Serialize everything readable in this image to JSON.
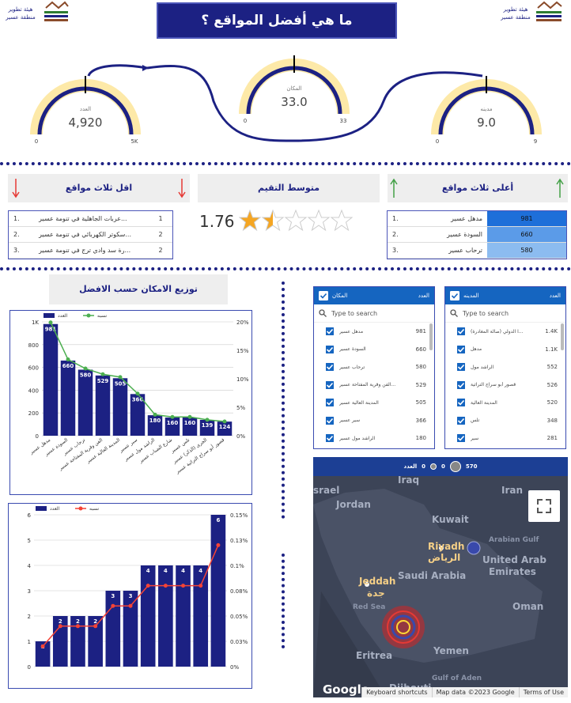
{
  "header": {
    "title": "ما هي أفضل المواقع ؟",
    "logo_lines": [
      "هيئة تطوير",
      "منطقة عسير"
    ]
  },
  "gauges": [
    {
      "label": "العدد",
      "value": "4,920",
      "min": "0",
      "max": "5K"
    },
    {
      "label": "المكان",
      "value": "33.0",
      "min": "0",
      "max": "33"
    },
    {
      "label": "مدينه",
      "value": "9.0",
      "min": "0",
      "max": "9"
    }
  ],
  "lowest": {
    "title": "اقل ثلاث  مواقع",
    "rows": [
      [
        "1.",
        "...عربات الجاهلية في تنومة عسير",
        "1"
      ],
      [
        "2.",
        "...سكوتر الكهربائي في تنومة عسير",
        "2"
      ],
      [
        "3.",
        "...رة سد وادي ترج في تنومة عسير",
        "2"
      ]
    ]
  },
  "rating": {
    "title": "متوسط التقيم",
    "value": "1.76"
  },
  "highest": {
    "title": "أعلى ثلاث مواقع",
    "rows": [
      [
        "1.",
        "مدهل عسير",
        "981"
      ],
      [
        "2.",
        "السودة عسير",
        "660"
      ],
      [
        "3.",
        "ترحاب عسير",
        "580"
      ]
    ]
  },
  "chart_data": [
    {
      "type": "combo",
      "title": "توزيع الامكان حسب الافضل",
      "categories": [
        "مدهل عسير",
        "السودة عسير",
        "ترحاب عسير",
        "الفن وقرية المفتاحة عسير",
        "المدينة العالية عسير",
        "سير عسير",
        "الراشد مول عسير",
        "شارع الضباب عسير",
        "تلس عسير",
        "الجرى (الذكر) عسير",
        "قصور أبو سراج التراثية عسير"
      ],
      "series": [
        {
          "name": "العدد",
          "color": "#1c2183",
          "values": [
            981,
            660,
            580,
            529,
            505,
            366,
            180,
            160,
            160,
            139,
            124
          ]
        },
        {
          "name": "نسبه",
          "color": "#4caf50",
          "axis": "y2",
          "values": [
            19.9,
            13.4,
            11.8,
            10.8,
            10.3,
            7.4,
            3.7,
            3.3,
            3.3,
            2.8,
            2.5
          ]
        }
      ],
      "ylim": [
        0,
        1000
      ],
      "yticks": [
        0,
        200,
        400,
        600,
        800,
        {
          "value": 1000,
          "label": "1K"
        }
      ],
      "y2lim": [
        0,
        20
      ],
      "y2ticks": [
        {
          "value": 0,
          "label": "0%"
        },
        {
          "value": 5,
          "label": "5%"
        },
        {
          "value": 10,
          "label": "10%"
        },
        {
          "value": 15,
          "label": "15%"
        },
        {
          "value": 20,
          "label": "20%"
        }
      ],
      "grid": true
    },
    {
      "type": "combo",
      "categories": [
        null,
        null,
        null,
        null,
        null,
        null,
        null,
        null,
        null,
        null,
        null
      ],
      "series": [
        {
          "name": "العدد",
          "color": "#1c2183",
          "values": [
            1,
            2,
            2,
            2,
            3,
            3,
            4,
            4,
            4,
            4,
            6
          ]
        },
        {
          "name": "نسبه",
          "color": "#f44336",
          "axis": "y2",
          "values": [
            0.02,
            0.04,
            0.04,
            0.04,
            0.06,
            0.06,
            0.08,
            0.08,
            0.08,
            0.08,
            0.12
          ]
        }
      ],
      "ylim": [
        0,
        6
      ],
      "yticks": [
        0,
        1,
        2,
        3,
        4,
        5,
        6
      ],
      "y2lim": [
        0,
        0.15
      ],
      "y2ticks": [
        {
          "value": 0,
          "label": "0%"
        },
        {
          "value": 0.025,
          "label": "0.03%"
        },
        {
          "value": 0.05,
          "label": "0.05%"
        },
        {
          "value": 0.075,
          "label": "0.08%"
        },
        {
          "value": 0.1,
          "label": "0.1%"
        },
        {
          "value": 0.125,
          "label": "0.13%"
        },
        {
          "value": 0.15,
          "label": "0.15%"
        }
      ],
      "grid": true
    }
  ],
  "filters": [
    {
      "title": "المكان",
      "count_header": "العدد",
      "search": "Type to search",
      "items": [
        [
          "مدهل عسير",
          "981"
        ],
        [
          "السودة عسير",
          "660"
        ],
        [
          "ترحاب عسير",
          "580"
        ],
        [
          "...الفن وقرية المفتاحة عسير",
          "529"
        ],
        [
          "المدينة العالية عسير",
          "505"
        ],
        [
          "سير عسير",
          "366"
        ],
        [
          "الراشد مول عسير",
          "180"
        ]
      ]
    },
    {
      "title": "المدينه",
      "count_header": "العدد",
      "search": "Type to search",
      "items": [
        [
          "...ا الدولي (صالة المغادرة)",
          "1.4K"
        ],
        [
          "مدهل",
          "1.1K"
        ],
        [
          "الراشد مول",
          "552"
        ],
        [
          "قصور أبو سراج التراثية",
          "526"
        ],
        [
          "المدينة العالية",
          "520"
        ],
        [
          "تلس",
          "348"
        ],
        [
          "سير",
          "281"
        ]
      ]
    }
  ],
  "map": {
    "legend_title": "العدد",
    "legend_values": [
      "0",
      "0",
      "570"
    ],
    "labels": [
      "Iraq",
      "srael",
      "Jordan",
      "Kuwait",
      "Riyadh",
      "الرياض",
      "Saudi Arabia",
      "Jeddah",
      "جدة",
      "Red Sea",
      "Eritrea",
      "Yemen",
      "Oman",
      "United Arab",
      "Emirates",
      "Arabian Gulf",
      "Iran",
      "Gulf of Aden",
      "Djibouti",
      "Google"
    ],
    "footer": [
      "Keyboard shortcuts",
      "Map data ©2023 Google",
      "Terms of Use"
    ]
  }
}
